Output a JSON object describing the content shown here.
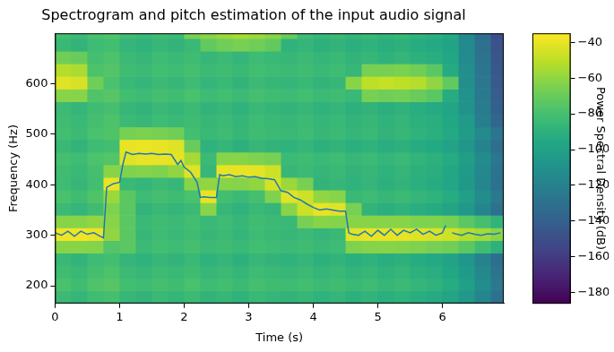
{
  "chart_data": {
    "type": "spectrogram",
    "title": "Spectrogram and pitch estimation of the input audio signal",
    "x_label": "Time (s)",
    "y_label": "Frequency (Hz)",
    "xlim": [
      0,
      6.95
    ],
    "xticks": [
      0,
      1,
      2,
      3,
      4,
      5,
      6
    ],
    "ylim": [
      165,
      700
    ],
    "yticks": [
      200,
      300,
      400,
      500,
      600
    ],
    "grid": false,
    "cells": {
      "x_edges": [
        0,
        0.25,
        0.5,
        0.75,
        1,
        1.25,
        1.5,
        1.75,
        2,
        2.25,
        2.5,
        2.75,
        3,
        3.25,
        3.5,
        3.75,
        4,
        4.25,
        4.5,
        4.75,
        5,
        5.25,
        5.5,
        5.75,
        6,
        6.25,
        6.5,
        6.75,
        6.95
      ],
      "y_edges": [
        165,
        190,
        215,
        240,
        265,
        290,
        315,
        340,
        365,
        390,
        415,
        440,
        465,
        490,
        515,
        540,
        565,
        590,
        615,
        640,
        665,
        690,
        700
      ],
      "z": [
        [
          -84,
          -87,
          -82,
          -80,
          -86,
          -88,
          -85,
          -87,
          -84,
          -88,
          -86,
          -89,
          -85,
          -87,
          -88,
          -86,
          -89,
          -87,
          -90,
          -88,
          -91,
          -89,
          -92,
          -94,
          -98,
          -106,
          -118,
          -130
        ],
        [
          -79,
          -82,
          -77,
          -75,
          -81,
          -83,
          -80,
          -82,
          -79,
          -83,
          -81,
          -84,
          -80,
          -82,
          -83,
          -81,
          -84,
          -82,
          -85,
          -83,
          -86,
          -84,
          -87,
          -89,
          -93,
          -101,
          -113,
          -125
        ],
        [
          -82,
          -85,
          -80,
          -78,
          -84,
          -86,
          -83,
          -85,
          -82,
          -86,
          -84,
          -87,
          -83,
          -85,
          -86,
          -84,
          -87,
          -85,
          -88,
          -86,
          -89,
          -87,
          -90,
          -92,
          -96,
          -104,
          -116,
          -128
        ],
        [
          -85,
          -88,
          -83,
          -81,
          -87,
          -89,
          -86,
          -88,
          -85,
          -89,
          -87,
          -90,
          -86,
          -88,
          -89,
          -87,
          -90,
          -88,
          -91,
          -89,
          -92,
          -90,
          -93,
          -95,
          -99,
          -107,
          -119,
          -131
        ],
        [
          -62,
          -62,
          -63,
          -76,
          -74,
          -84,
          -81,
          -83,
          -80,
          -84,
          -82,
          -85,
          -81,
          -83,
          -84,
          -82,
          -85,
          -83,
          -64,
          -63,
          -62,
          -63,
          -64,
          -66,
          -68,
          -74,
          -82,
          -90
        ],
        [
          -38,
          -38,
          -40,
          -60,
          -74,
          -86,
          -83,
          -85,
          -82,
          -86,
          -84,
          -87,
          -83,
          -85,
          -86,
          -84,
          -87,
          -85,
          -42,
          -40,
          -40,
          -41,
          -42,
          -44,
          -46,
          -52,
          -56,
          -62
        ],
        [
          -62,
          -62,
          -60,
          -62,
          -74,
          -85,
          -82,
          -84,
          -81,
          -85,
          -83,
          -86,
          -82,
          -84,
          -85,
          -66,
          -62,
          -63,
          -62,
          -62,
          -62,
          -62,
          -64,
          -64,
          -66,
          -74,
          -80,
          -88
        ],
        [
          -84,
          -87,
          -82,
          -64,
          -74,
          -88,
          -85,
          -87,
          -84,
          -62,
          -86,
          -89,
          -85,
          -87,
          -62,
          -47,
          -40,
          -42,
          -66,
          -88,
          -91,
          -89,
          -92,
          -94,
          -98,
          -106,
          -118,
          -130
        ],
        [
          -79,
          -82,
          -77,
          -58,
          -74,
          -83,
          -80,
          -82,
          -79,
          -40,
          -81,
          -84,
          -80,
          -64,
          -42,
          -46,
          -60,
          -62,
          -85,
          -83,
          -86,
          -84,
          -87,
          -89,
          -93,
          -101,
          -113,
          -125
        ],
        [
          -83,
          -86,
          -81,
          -40,
          -85,
          -87,
          -84,
          -86,
          -62,
          -60,
          -62,
          -63,
          -60,
          -45,
          -58,
          -66,
          -88,
          -86,
          -89,
          -87,
          -90,
          -88,
          -91,
          -93,
          -97,
          -105,
          -117,
          -129
        ],
        [
          -82,
          -85,
          -80,
          -62,
          -64,
          -63,
          -64,
          -60,
          -42,
          -86,
          -40,
          -40,
          -41,
          -46,
          -86,
          -84,
          -87,
          -85,
          -88,
          -86,
          -89,
          -87,
          -90,
          -92,
          -96,
          -104,
          -116,
          -128
        ],
        [
          -80,
          -83,
          -78,
          -76,
          -42,
          -40,
          -40,
          -41,
          -55,
          -84,
          -62,
          -62,
          -64,
          -66,
          -84,
          -82,
          -85,
          -83,
          -86,
          -84,
          -87,
          -85,
          -88,
          -90,
          -94,
          -102,
          -114,
          -126
        ],
        [
          -85,
          -88,
          -83,
          -81,
          -40,
          -39,
          -40,
          -42,
          -70,
          -89,
          -87,
          -90,
          -86,
          -88,
          -89,
          -87,
          -90,
          -88,
          -91,
          -89,
          -92,
          -90,
          -93,
          -95,
          -99,
          -107,
          -119,
          -131
        ],
        [
          -81,
          -84,
          -79,
          -77,
          -66,
          -65,
          -66,
          -68,
          -81,
          -85,
          -83,
          -86,
          -82,
          -84,
          -85,
          -83,
          -86,
          -84,
          -87,
          -85,
          -88,
          -86,
          -89,
          -91,
          -95,
          -103,
          -115,
          -127
        ],
        [
          -82,
          -85,
          -80,
          -78,
          -84,
          -86,
          -83,
          -85,
          -82,
          -86,
          -84,
          -87,
          -83,
          -85,
          -86,
          -84,
          -87,
          -85,
          -88,
          -86,
          -89,
          -87,
          -90,
          -92,
          -96,
          -104,
          -122,
          -136
        ],
        [
          -84,
          -87,
          -82,
          -80,
          -86,
          -88,
          -85,
          -87,
          -84,
          -88,
          -86,
          -89,
          -85,
          -87,
          -88,
          -86,
          -89,
          -87,
          -90,
          -88,
          -91,
          -89,
          -92,
          -94,
          -98,
          -110,
          -124,
          -140
        ],
        [
          -62,
          -62,
          -77,
          -75,
          -81,
          -83,
          -80,
          -82,
          -79,
          -83,
          -81,
          -84,
          -80,
          -82,
          -83,
          -81,
          -84,
          -82,
          -85,
          -66,
          -68,
          -67,
          -70,
          -74,
          -93,
          -110,
          -125,
          -142
        ],
        [
          -42,
          -44,
          -68,
          -79,
          -85,
          -87,
          -84,
          -86,
          -83,
          -87,
          -85,
          -88,
          -84,
          -86,
          -87,
          -85,
          -88,
          -86,
          -62,
          -50,
          -48,
          -50,
          -52,
          -60,
          -72,
          -112,
          -126,
          -144
        ],
        [
          -52,
          -54,
          -78,
          -76,
          -82,
          -84,
          -81,
          -83,
          -80,
          -84,
          -82,
          -85,
          -81,
          -83,
          -84,
          -82,
          -85,
          -83,
          -86,
          -66,
          -66,
          -65,
          -68,
          -74,
          -94,
          -112,
          -127,
          -145
        ],
        [
          -68,
          -70,
          -80,
          -78,
          -84,
          -86,
          -83,
          -85,
          -82,
          -86,
          -84,
          -87,
          -83,
          -85,
          -86,
          -84,
          -87,
          -85,
          -88,
          -86,
          -89,
          -87,
          -90,
          -92,
          -96,
          -114,
          -128,
          -146
        ],
        [
          -85,
          -88,
          -83,
          -81,
          -87,
          -89,
          -86,
          -88,
          -85,
          -72,
          -68,
          -66,
          -68,
          -72,
          -89,
          -87,
          -90,
          -88,
          -91,
          -89,
          -92,
          -90,
          -93,
          -95,
          -99,
          -115,
          -130,
          -148
        ],
        [
          -81,
          -84,
          -79,
          -77,
          -83,
          -85,
          -82,
          -84,
          -66,
          -62,
          -58,
          -55,
          -58,
          -62,
          -70,
          -83,
          -86,
          -84,
          -87,
          -85,
          -88,
          -86,
          -89,
          -91,
          -95,
          -116,
          -132,
          -150
        ]
      ]
    },
    "colorbar": {
      "label": "Power Spectral Density (dB)",
      "lim": [
        -186,
        -35
      ],
      "ticks": [
        {
          "value": -180,
          "label": "−180"
        },
        {
          "value": -160,
          "label": "−160"
        },
        {
          "value": -140,
          "label": "−140"
        },
        {
          "value": -120,
          "label": "−120"
        },
        {
          "value": -100,
          "label": "−100"
        },
        {
          "value": -80,
          "label": "−80"
        },
        {
          "value": -60,
          "label": "−60"
        },
        {
          "value": -40,
          "label": "−40"
        }
      ]
    },
    "series": [
      {
        "type": "line",
        "color": "#1f77b4",
        "x": [
          0,
          0.1,
          0.2,
          0.3,
          0.4,
          0.5,
          0.6,
          0.7,
          0.75,
          0.8,
          0.9,
          1.0,
          1.05,
          1.1,
          1.2,
          1.3,
          1.4,
          1.5,
          1.6,
          1.7,
          1.8,
          1.9,
          1.95,
          2.0,
          2.1,
          2.2,
          2.25,
          2.3,
          2.4,
          2.5,
          2.55,
          2.6,
          2.7,
          2.8,
          2.9,
          3.0,
          3.1,
          3.2,
          3.3,
          3.4,
          3.5,
          3.6,
          3.7,
          3.8,
          3.9,
          4.0,
          4.1,
          4.2,
          4.3,
          4.4,
          4.5,
          4.55,
          4.6,
          4.7,
          4.8,
          4.9,
          5.0,
          5.1,
          5.2,
          5.3,
          5.4,
          5.5,
          5.6,
          5.7,
          5.8,
          5.9,
          6.0,
          6.05,
          6.1,
          6.15,
          6.2,
          6.3,
          6.4,
          6.5,
          6.6,
          6.7,
          6.8,
          6.9
        ],
        "values": [
          305,
          300,
          308,
          298,
          308,
          302,
          305,
          298,
          295,
          395,
          402,
          405,
          440,
          465,
          460,
          462,
          461,
          462,
          460,
          461,
          460,
          440,
          448,
          435,
          425,
          405,
          375,
          376,
          375,
          375,
          420,
          418,
          420,
          416,
          418,
          415,
          416,
          413,
          412,
          410,
          388,
          385,
          375,
          370,
          362,
          355,
          350,
          352,
          350,
          348,
          348,
          305,
          302,
          300,
          308,
          298,
          310,
          300,
          312,
          300,
          310,
          305,
          312,
          302,
          308,
          300,
          305,
          320,
          null,
          305,
          303,
          300,
          305,
          302,
          300,
          303,
          302,
          305
        ]
      }
    ]
  }
}
